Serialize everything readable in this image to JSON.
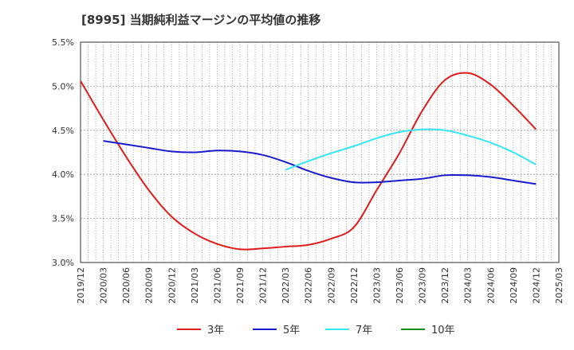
{
  "chart_data": {
    "type": "line",
    "title": "[8995]  当期純利益マージンの平均値の推移",
    "xlabel": "",
    "ylabel": "",
    "ylim": [
      3.0,
      5.5
    ],
    "yticks": [
      "5.5%",
      "5.0%",
      "4.5%",
      "4.0%",
      "3.5%",
      "3.0%"
    ],
    "ytick_values": [
      5.5,
      5.0,
      4.5,
      4.0,
      3.5,
      3.0
    ],
    "x_categories": [
      "2019/12",
      "2020/03",
      "2020/06",
      "2020/09",
      "2020/12",
      "2021/03",
      "2021/06",
      "2021/09",
      "2021/12",
      "2022/03",
      "2022/06",
      "2022/09",
      "2022/12",
      "2023/03",
      "2023/06",
      "2023/09",
      "2023/12",
      "2024/03",
      "2024/06",
      "2024/09",
      "2024/12",
      "2025/03"
    ],
    "grid": true,
    "legend_position": "bottom",
    "series": [
      {
        "name": "3年",
        "color": "#e01b1b",
        "values": [
          5.06,
          4.62,
          4.2,
          3.82,
          3.52,
          3.33,
          3.21,
          3.15,
          3.16,
          3.18,
          3.2,
          3.27,
          3.4,
          3.82,
          4.24,
          4.72,
          5.07,
          5.15,
          5.02,
          4.78,
          4.51,
          null
        ]
      },
      {
        "name": "5年",
        "color": "#1a1acc",
        "values": [
          null,
          4.38,
          4.34,
          4.3,
          4.26,
          4.25,
          4.27,
          4.26,
          4.22,
          4.14,
          4.04,
          3.96,
          3.91,
          3.91,
          3.93,
          3.95,
          3.99,
          3.99,
          3.97,
          3.93,
          3.89,
          null
        ]
      },
      {
        "name": "7年",
        "color": "#33e6f0",
        "values": [
          null,
          null,
          null,
          null,
          null,
          null,
          null,
          null,
          null,
          4.05,
          4.15,
          4.24,
          4.32,
          4.41,
          4.48,
          4.51,
          4.5,
          4.44,
          4.36,
          4.25,
          4.11,
          null
        ]
      },
      {
        "name": "10年",
        "color": "#1a8c1a",
        "values": []
      }
    ]
  }
}
